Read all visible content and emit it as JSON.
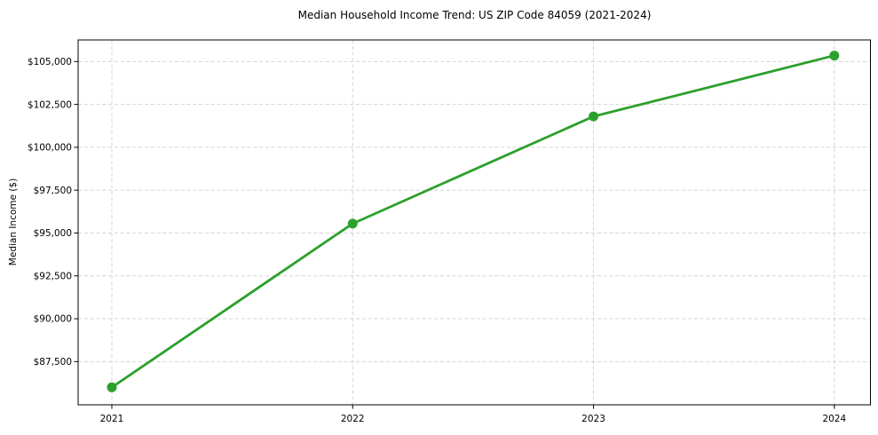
{
  "chart_data": {
    "type": "line",
    "title": "Median Household Income Trend: US ZIP Code 84059 (2021-2024)",
    "xlabel": "",
    "ylabel": "Median Income ($)",
    "categories": [
      "2021",
      "2022",
      "2023",
      "2024"
    ],
    "x": [
      2021,
      2022,
      2023,
      2024
    ],
    "series": [
      {
        "name": "Median Income ($)",
        "values": [
          86000,
          95550,
          101800,
          105350
        ]
      }
    ],
    "ytick_values": [
      87500,
      90000,
      92500,
      95000,
      97500,
      100000,
      102500,
      105000
    ],
    "ytick_labels": [
      "$87,500",
      "$90,000",
      "$92,500",
      "$95,000",
      "$97,500",
      "$100,000",
      "$102,500",
      "$105,000"
    ],
    "xlim": [
      2020.86,
      2024.15
    ],
    "ylim": [
      84980,
      106260
    ],
    "grid": true,
    "grid_style": "dashed",
    "legend": "none",
    "marker": "circle",
    "colors": {
      "line": "#2ca02c",
      "marker": "#2ca02c",
      "grid": "#d5d5d5",
      "axis": "#000000",
      "text": "#000000"
    }
  }
}
